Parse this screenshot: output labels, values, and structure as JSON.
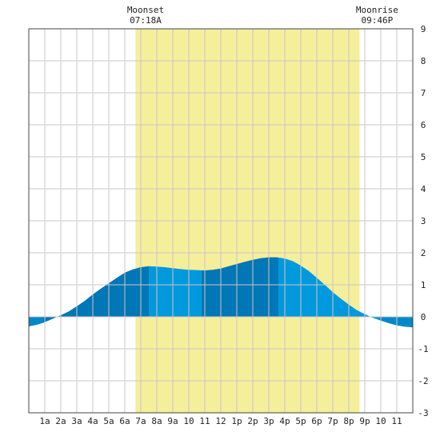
{
  "chart_data": {
    "type": "area",
    "ylim": [
      -3,
      9
    ],
    "yticks": [
      9,
      8,
      7,
      6,
      5,
      4,
      3,
      2,
      1,
      0,
      -1,
      -2,
      -3
    ],
    "xlim": [
      0,
      24
    ],
    "xtick_labels": [
      "1a",
      "2a",
      "3a",
      "4a",
      "5a",
      "6a",
      "7a",
      "8a",
      "9a",
      "10",
      "11",
      "12",
      "1p",
      "2p",
      "3p",
      "4p",
      "5p",
      "6p",
      "7p",
      "8p",
      "9p",
      "10",
      "11"
    ],
    "grid": true,
    "annotations": [
      {
        "title": "Moonset",
        "time": "07:18A",
        "hour": 7.3
      },
      {
        "title": "Moonrise",
        "time": "09:46P",
        "hour": 21.77
      }
    ],
    "shaded_interval": {
      "start": 6.67,
      "end": 20.67,
      "color": "#f5ee9a"
    },
    "series": [
      {
        "x": [
          0,
          0.5,
          1,
          1.5,
          2,
          2.5,
          3,
          3.5,
          4,
          4.5,
          5,
          5.5,
          6,
          6.5,
          7,
          7.5,
          8,
          8.5,
          9,
          9.5,
          10,
          10.5,
          11,
          11.5,
          12,
          12.5,
          13,
          13.5,
          14,
          14.5,
          15,
          15.5,
          16,
          16.5,
          17,
          17.5,
          18,
          18.5,
          19,
          19.5,
          20,
          20.5,
          21,
          21.5,
          22,
          22.5,
          23,
          23.5,
          24
        ],
        "values": [
          -0.3,
          -0.25,
          -0.17,
          -0.06,
          0.05,
          0.17,
          0.33,
          0.5,
          0.7,
          0.88,
          1.05,
          1.22,
          1.38,
          1.48,
          1.55,
          1.58,
          1.57,
          1.55,
          1.52,
          1.49,
          1.47,
          1.46,
          1.45,
          1.47,
          1.51,
          1.58,
          1.65,
          1.72,
          1.78,
          1.83,
          1.86,
          1.86,
          1.82,
          1.74,
          1.6,
          1.43,
          1.22,
          1.0,
          0.77,
          0.57,
          0.38,
          0.21,
          0.08,
          -0.03,
          -0.12,
          -0.2,
          -0.27,
          -0.31,
          -0.33
        ],
        "bands": [
          {
            "start": 0,
            "end": 0.9,
            "color": "#0088c8"
          },
          {
            "start": 0.9,
            "end": 7.5,
            "color": "#0077b6"
          },
          {
            "start": 7.5,
            "end": 10.8,
            "color": "#0099dd"
          },
          {
            "start": 10.8,
            "end": 15.6,
            "color": "#0077b6"
          },
          {
            "start": 15.6,
            "end": 21.9,
            "color": "#0099dd"
          },
          {
            "start": 21.9,
            "end": 24,
            "color": "#0088c8"
          }
        ]
      }
    ]
  }
}
